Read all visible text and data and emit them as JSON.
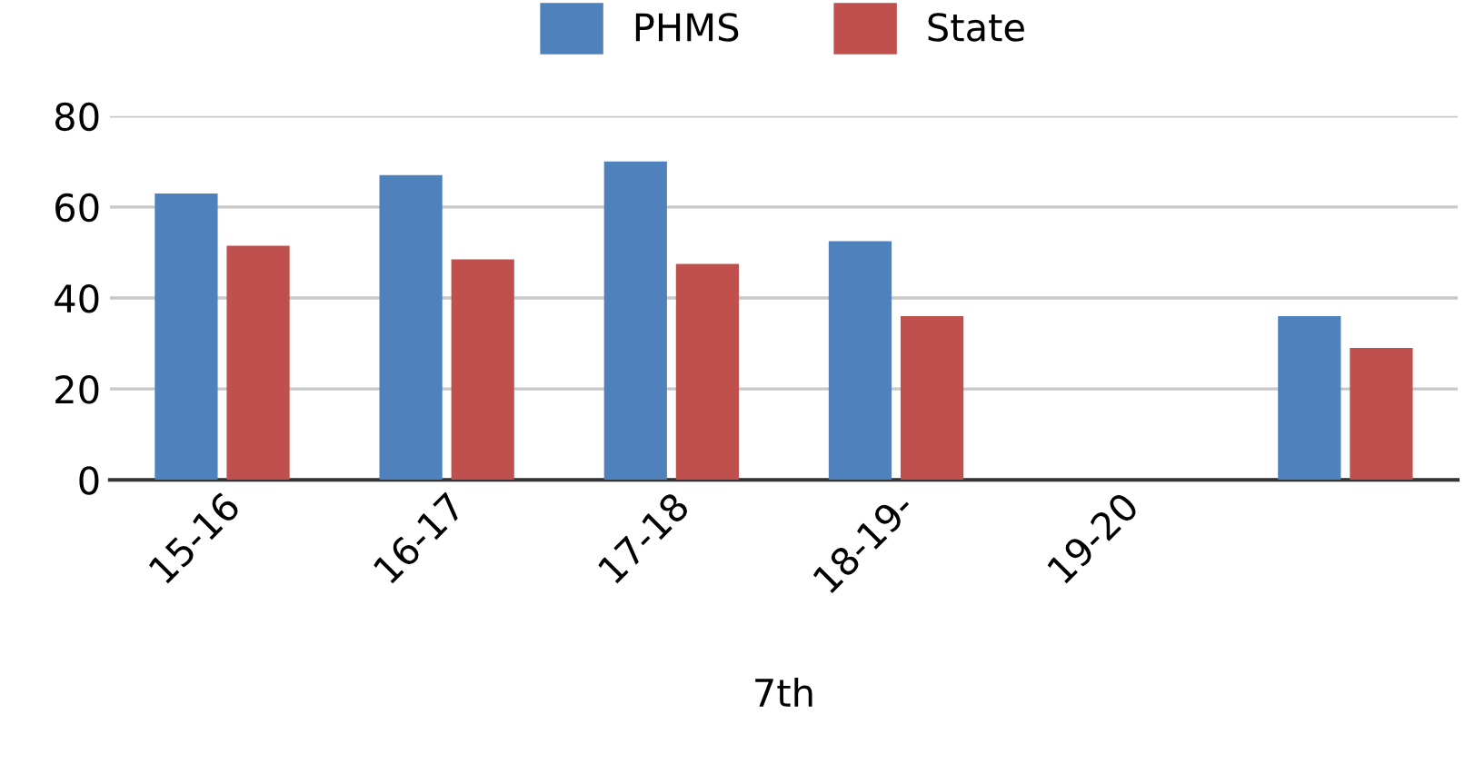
{
  "chart_data": {
    "type": "bar",
    "xlabel": "7th",
    "categories": [
      "15-16",
      "16-17",
      "17-18",
      "18-19-",
      "19-20",
      null
    ],
    "series": [
      {
        "name": "PHMS",
        "color": "#4f81bd",
        "values": [
          63,
          67,
          70,
          52.5,
          null,
          36
        ]
      },
      {
        "name": "State",
        "color": "#c0504d",
        "values": [
          51.5,
          48.5,
          47.5,
          36,
          null,
          29
        ]
      }
    ],
    "ylim": [
      0,
      80
    ],
    "yticks": [
      0,
      20,
      40,
      60,
      80
    ],
    "grid": "y",
    "legend": "top"
  }
}
